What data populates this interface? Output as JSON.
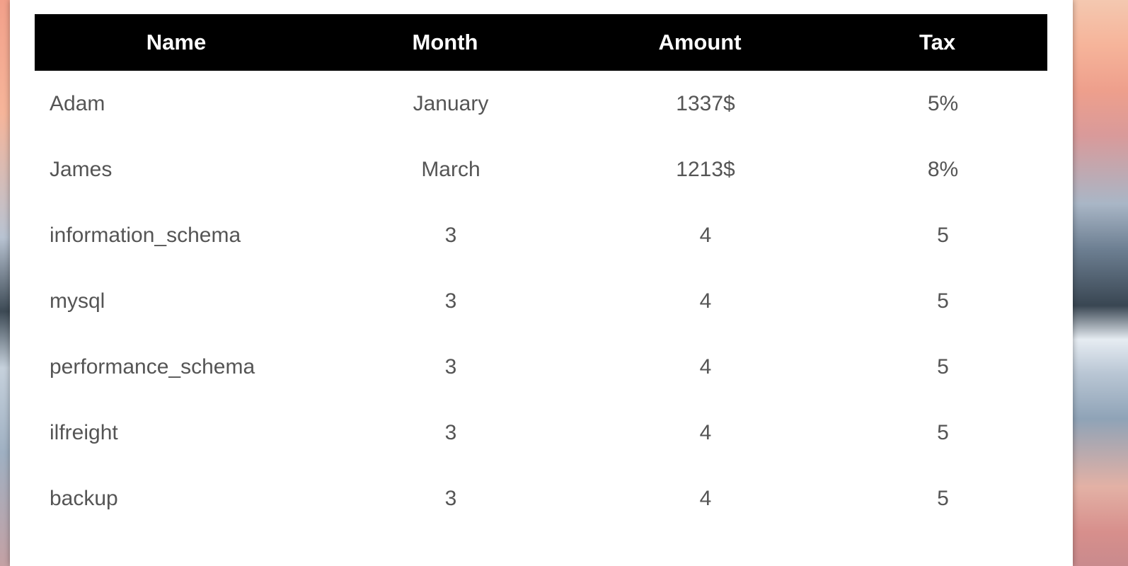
{
  "table": {
    "headers": [
      "Name",
      "Month",
      "Amount",
      "Tax"
    ],
    "rows": [
      [
        "Adam",
        "January",
        "1337$",
        "5%"
      ],
      [
        "James",
        "March",
        "1213$",
        "8%"
      ],
      [
        "information_schema",
        "3",
        "4",
        "5"
      ],
      [
        "mysql",
        "3",
        "4",
        "5"
      ],
      [
        "performance_schema",
        "3",
        "4",
        "5"
      ],
      [
        "ilfreight",
        "3",
        "4",
        "5"
      ],
      [
        "backup",
        "3",
        "4",
        "5"
      ]
    ]
  },
  "colors": {
    "header_bg": "#000000",
    "header_text": "#ffffff",
    "cell_text": "#555555",
    "panel_bg": "#ffffff"
  }
}
